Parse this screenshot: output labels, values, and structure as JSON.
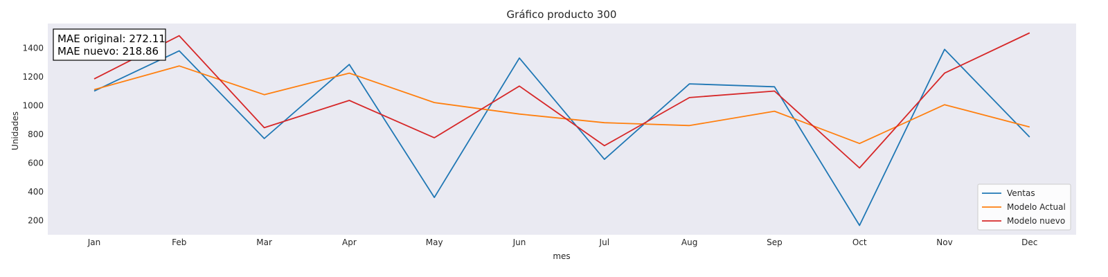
{
  "chart_data": {
    "type": "line",
    "title": "Gráfico producto 300",
    "xlabel": "mes",
    "ylabel": "Unidades",
    "categories": [
      "Jan",
      "Feb",
      "Mar",
      "Apr",
      "May",
      "Jun",
      "Jul",
      "Aug",
      "Sep",
      "Oct",
      "Nov",
      "Dec"
    ],
    "ylim": [
      100,
      1570
    ],
    "yticks": [
      200,
      400,
      600,
      800,
      1000,
      1200,
      1400
    ],
    "grid": false,
    "legend": "lower-right",
    "series": [
      {
        "name": "Ventas",
        "color": "#1f77b4",
        "values": [
          1100,
          1380,
          770,
          1285,
          360,
          1330,
          625,
          1150,
          1130,
          165,
          1390,
          780
        ]
      },
      {
        "name": "Modelo Actual",
        "color": "#ff7f0e",
        "values": [
          1110,
          1275,
          1075,
          1225,
          1020,
          940,
          880,
          860,
          960,
          735,
          1005,
          850
        ]
      },
      {
        "name": "Modelo nuevo",
        "color": "#d62728",
        "values": [
          1185,
          1485,
          845,
          1035,
          775,
          1135,
          720,
          1055,
          1100,
          565,
          1225,
          1505
        ]
      }
    ],
    "annotation": [
      "MAE original: 272.11",
      "MAE nuevo: 218.86"
    ]
  }
}
